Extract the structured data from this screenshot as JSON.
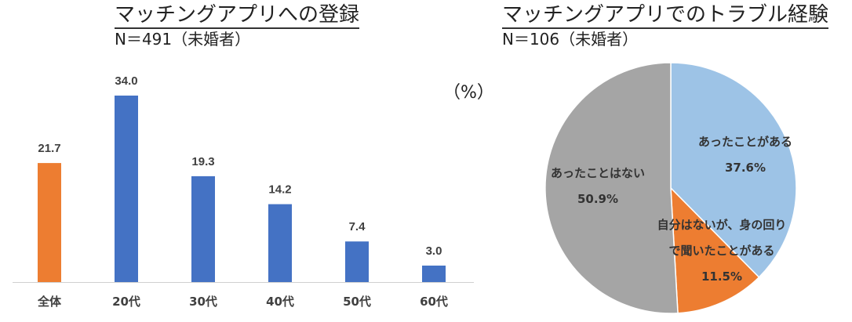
{
  "chart_data": [
    {
      "type": "bar",
      "title": "マッチングアプリへの登録",
      "subtitle": "N＝491（未婚者）",
      "unit": "（%）",
      "categories": [
        "全体",
        "20代",
        "30代",
        "40代",
        "50代",
        "60代"
      ],
      "values": [
        21.7,
        34.0,
        19.3,
        14.2,
        7.4,
        3.0
      ],
      "value_labels": [
        "21.7",
        "34.0",
        "19.3",
        "14.2",
        "7.4",
        "3.0"
      ],
      "colors": [
        "#ED7D31",
        "#4472C4",
        "#4472C4",
        "#4472C4",
        "#4472C4",
        "#4472C4"
      ],
      "ylim": [
        0,
        40
      ],
      "grid": false
    },
    {
      "type": "pie",
      "title": "マッチングアプリでのトラブル経験",
      "subtitle": "N＝106（未婚者）",
      "slices": [
        {
          "label_lines": [
            "あったことがある"
          ],
          "value": 37.6,
          "value_label": "37.6%",
          "color": "#9DC3E6"
        },
        {
          "label_lines": [
            "自分はないが、身の回り",
            "で聞いたことがある"
          ],
          "value": 11.5,
          "value_label": "11.5%",
          "color": "#ED7D31"
        },
        {
          "label_lines": [
            "あったことはない"
          ],
          "value": 50.9,
          "value_label": "50.9%",
          "color": "#A5A5A5"
        }
      ]
    }
  ]
}
